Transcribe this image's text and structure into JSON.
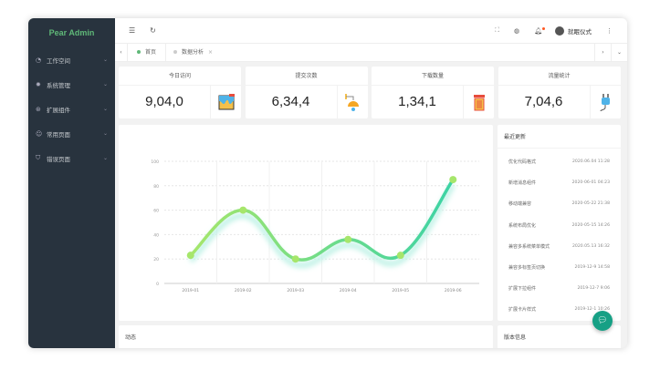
{
  "app": {
    "title": "Pear Admin"
  },
  "sidebar": {
    "items": [
      {
        "label": "工作空间",
        "icon": "dashboard-icon"
      },
      {
        "label": "系统管理",
        "icon": "gear-icon"
      },
      {
        "label": "扩展组件",
        "icon": "component-icon"
      },
      {
        "label": "常用页面",
        "icon": "smile-icon"
      },
      {
        "label": "错误页面",
        "icon": "shield-icon"
      }
    ]
  },
  "header": {
    "user": "就眠仪式",
    "notification_dot_color": "#ff5722"
  },
  "tabs": [
    {
      "label": "首页",
      "active": true
    },
    {
      "label": "数据分析",
      "active": false
    }
  ],
  "stats": [
    {
      "title": "今日访问",
      "value": "9,04,0",
      "icon": "paint-bucket-icon"
    },
    {
      "title": "提交次数",
      "value": "6,34,4",
      "icon": "lamp-icon"
    },
    {
      "title": "下载数量",
      "value": "1,34,1",
      "icon": "trash-icon"
    },
    {
      "title": "流量统计",
      "value": "7,04,6",
      "icon": "plug-icon"
    }
  ],
  "updates": {
    "title": "最近更新",
    "items": [
      {
        "text": "优化代码格式",
        "date": "2020.06.04 11:28"
      },
      {
        "text": "新增消息组件",
        "date": "2020-06-01 04:23"
      },
      {
        "text": "移动端兼容",
        "date": "2020-05-22 21:38"
      },
      {
        "text": "系统布局优化",
        "date": "2020-05-15 14:26"
      },
      {
        "text": "兼容多系统菜单模式",
        "date": "2020.05.13 16:32"
      },
      {
        "text": "兼容多标签页切换",
        "date": "2019-12-9 14:58"
      },
      {
        "text": "扩展下拉组件",
        "date": "2019-12-7 9:06"
      },
      {
        "text": "扩展卡片样式",
        "date": "2019-12-1 10:26"
      }
    ]
  },
  "bottom": {
    "activity_title": "动态",
    "version_title": "版本信息"
  },
  "chart_data": {
    "type": "line",
    "smooth": true,
    "x": [
      "2019-01",
      "2019-02",
      "2019-03",
      "2019-04",
      "2019-05",
      "2019-06"
    ],
    "values": [
      23,
      60,
      20,
      36,
      23,
      85
    ],
    "ylim": [
      0,
      100
    ],
    "yticks": [
      0,
      20,
      40,
      60,
      80,
      100
    ],
    "grid": true,
    "colors": {
      "line_start": "#a6e66b",
      "line_end": "#3cd3a5",
      "point": "#a6e66b"
    }
  }
}
